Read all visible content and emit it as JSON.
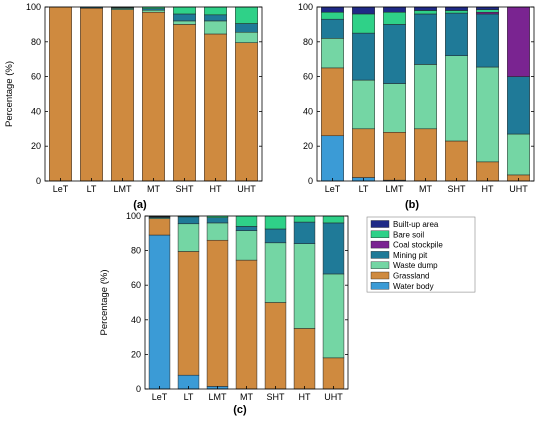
{
  "colors": {
    "Water body": "#3b9bd6",
    "Grassland": "#cf8a3f",
    "Waste dump": "#74d6a4",
    "Mining pit": "#1f7a98",
    "Coal stockpile": "#7a2491",
    "Bare soil": "#2fd188",
    "Built-up area": "#1f2a86",
    "axis": "#000000"
  },
  "chart_data": [
    {
      "type": "bar",
      "stacked": true,
      "panel_label": "(a)",
      "ylabel": "Percentage (%)",
      "ylim": [
        0,
        100
      ],
      "yticks": [
        0,
        20,
        40,
        60,
        80,
        100
      ],
      "categories": [
        "LeT",
        "LT",
        "LMT",
        "MT",
        "SHT",
        "HT",
        "UHT"
      ],
      "series": [
        {
          "name": "Water body",
          "values": [
            0,
            0,
            0,
            0,
            0,
            0,
            0
          ]
        },
        {
          "name": "Grassland",
          "values": [
            100,
            99.3,
            98.5,
            97,
            90,
            84.5,
            79.5
          ]
        },
        {
          "name": "Waste dump",
          "values": [
            0,
            0,
            0.7,
            1.2,
            2,
            7.5,
            6
          ]
        },
        {
          "name": "Mining pit",
          "values": [
            0,
            0.5,
            0.4,
            0.8,
            4,
            3.5,
            5
          ]
        },
        {
          "name": "Coal stockpile",
          "values": [
            0,
            0,
            0,
            0,
            0,
            0,
            0
          ]
        },
        {
          "name": "Bare soil",
          "values": [
            0,
            0.2,
            0.4,
            1,
            4,
            4.5,
            9.5
          ]
        },
        {
          "name": "Built-up area",
          "values": [
            0,
            0,
            0,
            0,
            0,
            0,
            0
          ]
        }
      ]
    },
    {
      "type": "bar",
      "stacked": true,
      "panel_label": "(b)",
      "ylabel": "",
      "ylim": [
        0,
        100
      ],
      "yticks": [
        0,
        20,
        40,
        60,
        80,
        100
      ],
      "categories": [
        "LeT",
        "LT",
        "LMT",
        "MT",
        "SHT",
        "HT",
        "UHT"
      ],
      "series": [
        {
          "name": "Water body",
          "values": [
            26,
            2,
            0.5,
            0,
            0,
            0,
            0
          ]
        },
        {
          "name": "Grassland",
          "values": [
            39,
            28,
            27.5,
            30,
            23,
            11,
            3.5
          ]
        },
        {
          "name": "Waste dump",
          "values": [
            17,
            28,
            28,
            37,
            49,
            54.5,
            23.5
          ]
        },
        {
          "name": "Mining pit",
          "values": [
            11,
            27,
            34,
            29,
            24.5,
            30.5,
            33
          ]
        },
        {
          "name": "Coal stockpile",
          "values": [
            0,
            0,
            0,
            0,
            0,
            1,
            40
          ]
        },
        {
          "name": "Bare soil",
          "values": [
            4,
            11,
            7,
            2,
            1.5,
            1.5,
            0
          ]
        },
        {
          "name": "Built-up area",
          "values": [
            3,
            4,
            3,
            2,
            2,
            1.5,
            0
          ]
        }
      ]
    },
    {
      "type": "bar",
      "stacked": true,
      "panel_label": "(c)",
      "ylabel": "Percentage (%)",
      "ylim": [
        0,
        100
      ],
      "yticks": [
        0,
        20,
        40,
        60,
        80,
        100
      ],
      "categories": [
        "LeT",
        "LT",
        "LMT",
        "MT",
        "SHT",
        "HT",
        "UHT"
      ],
      "series": [
        {
          "name": "Water body",
          "values": [
            89,
            8,
            1.5,
            0,
            0,
            0,
            0
          ]
        },
        {
          "name": "Grassland",
          "values": [
            9.5,
            71.5,
            84.5,
            74.5,
            50,
            35,
            18
          ]
        },
        {
          "name": "Waste dump",
          "values": [
            0.5,
            16,
            10,
            17,
            34.5,
            49,
            48.5
          ]
        },
        {
          "name": "Mining pit",
          "values": [
            0.5,
            4,
            3,
            2.5,
            8,
            12.5,
            29.5
          ]
        },
        {
          "name": "Coal stockpile",
          "values": [
            0,
            0,
            0,
            0,
            0,
            0,
            0
          ]
        },
        {
          "name": "Bare soil",
          "values": [
            0.3,
            0.5,
            1,
            6,
            7.5,
            3.5,
            4
          ]
        },
        {
          "name": "Built-up area",
          "values": [
            0.2,
            0,
            0,
            0,
            0,
            0,
            0
          ]
        }
      ],
      "legend": {
        "placement": "right-top",
        "entries": [
          "Built-up area",
          "Bare soil",
          "Coal stockpile",
          "Mining pit",
          "Waste dump",
          "Grassland",
          "Water body"
        ]
      }
    }
  ]
}
